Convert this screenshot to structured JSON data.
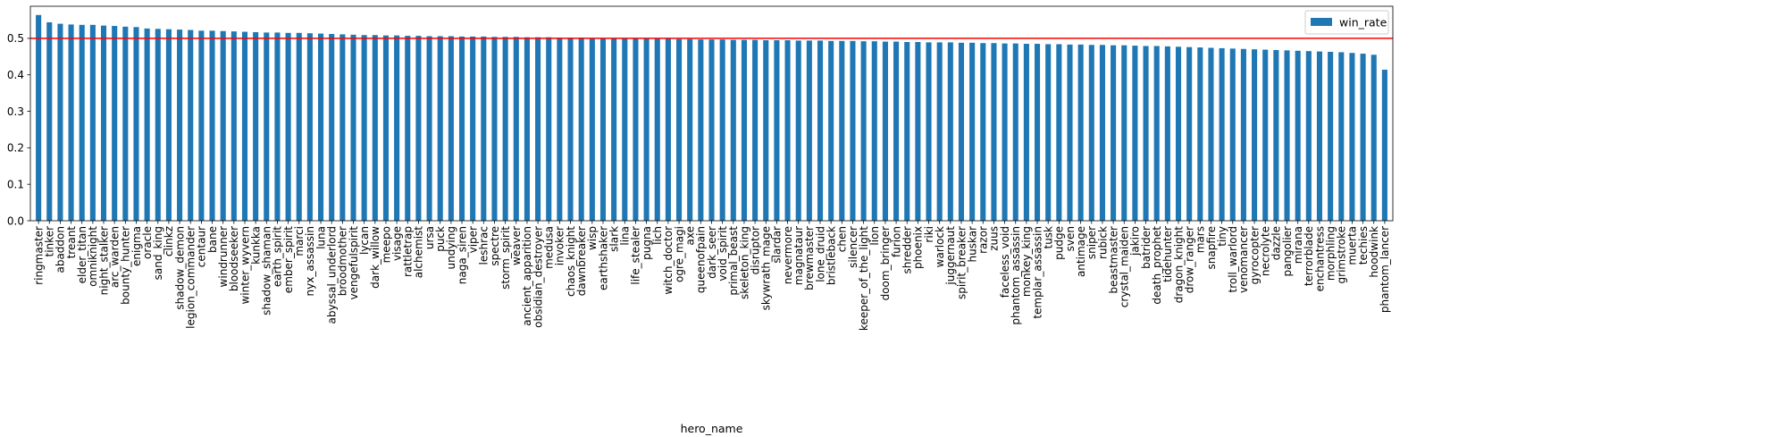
{
  "chart_data": {
    "type": "bar",
    "xlabel": "hero_name",
    "ylabel": "",
    "ylim": [
      0,
      0.588
    ],
    "yticks": [
      "0.0",
      "0.1",
      "0.2",
      "0.3",
      "0.4",
      "0.5"
    ],
    "grid": false,
    "legend_position": "top-right",
    "bar_color": "#1f77b4",
    "reference_line": {
      "y": 0.5,
      "color": "#ff0000"
    },
    "series": [
      {
        "name": "win_rate"
      }
    ],
    "categories": [
      "ringmaster",
      "tinker",
      "abaddon",
      "treant",
      "elder_titan",
      "omniknight",
      "night_stalker",
      "arc_warden",
      "bounty_hunter",
      "enigma",
      "oracle",
      "sand_king",
      "clinkz",
      "shadow_demon",
      "legion_commander",
      "centaur",
      "bane",
      "windrunner",
      "bloodseeker",
      "winter_wyvern",
      "kunkka",
      "shadow_shaman",
      "earth_spirit",
      "ember_spirit",
      "marci",
      "nyx_assassin",
      "luna",
      "abyssal_underlord",
      "broodmother",
      "vengefulspirit",
      "lycan",
      "dark_willow",
      "meepo",
      "visage",
      "rattletrap",
      "alchemist",
      "ursa",
      "puck",
      "undying",
      "naga_siren",
      "viper",
      "leshrac",
      "spectre",
      "storm_spirit",
      "weaver",
      "ancient_apparition",
      "obsidian_destroyer",
      "medusa",
      "invoker",
      "chaos_knight",
      "dawnbreaker",
      "wisp",
      "earthshaker",
      "slark",
      "lina",
      "life_stealer",
      "pugna",
      "lich",
      "witch_doctor",
      "ogre_magi",
      "axe",
      "queenofpain",
      "dark_seer",
      "void_spirit",
      "primal_beast",
      "skeleton_king",
      "disruptor",
      "skywrath_mage",
      "slardar",
      "nevermore",
      "magnataur",
      "brewmaster",
      "lone_druid",
      "bristleback",
      "chen",
      "silencer",
      "keeper_of_the_light",
      "lion",
      "doom_bringer",
      "furion",
      "shredder",
      "phoenix",
      "riki",
      "warlock",
      "juggernaut",
      "spirit_breaker",
      "huskar",
      "razor",
      "zuus",
      "faceless_void",
      "phantom_assassin",
      "monkey_king",
      "templar_assassin",
      "tusk",
      "pudge",
      "sven",
      "antimage",
      "sniper",
      "rubick",
      "beastmaster",
      "crystal_maiden",
      "jakiro",
      "batrider",
      "death_prophet",
      "tidehunter",
      "dragon_knight",
      "drow_ranger",
      "mars",
      "snapfire",
      "tiny",
      "troll_warlord",
      "venomancer",
      "gyrocopter",
      "necrolyte",
      "dazzle",
      "pangolier",
      "mirana",
      "terrorblade",
      "enchantress",
      "morphling",
      "grimstroke",
      "muerta",
      "techies",
      "hoodwink",
      "phantom_lancer"
    ],
    "values": [
      0.564,
      0.544,
      0.54,
      0.538,
      0.537,
      0.537,
      0.535,
      0.534,
      0.532,
      0.531,
      0.527,
      0.526,
      0.525,
      0.524,
      0.523,
      0.521,
      0.521,
      0.52,
      0.519,
      0.518,
      0.517,
      0.516,
      0.516,
      0.515,
      0.515,
      0.514,
      0.513,
      0.512,
      0.511,
      0.51,
      0.509,
      0.509,
      0.508,
      0.508,
      0.507,
      0.507,
      0.506,
      0.506,
      0.506,
      0.505,
      0.505,
      0.505,
      0.504,
      0.504,
      0.504,
      0.503,
      0.503,
      0.503,
      0.502,
      0.502,
      0.502,
      0.501,
      0.501,
      0.501,
      0.5,
      0.5,
      0.5,
      0.499,
      0.499,
      0.498,
      0.498,
      0.497,
      0.497,
      0.497,
      0.496,
      0.496,
      0.496,
      0.495,
      0.495,
      0.495,
      0.494,
      0.494,
      0.494,
      0.493,
      0.493,
      0.493,
      0.492,
      0.492,
      0.491,
      0.491,
      0.49,
      0.49,
      0.489,
      0.489,
      0.489,
      0.488,
      0.488,
      0.487,
      0.487,
      0.486,
      0.486,
      0.485,
      0.485,
      0.484,
      0.484,
      0.483,
      0.483,
      0.482,
      0.482,
      0.481,
      0.481,
      0.48,
      0.479,
      0.479,
      0.478,
      0.477,
      0.476,
      0.475,
      0.474,
      0.473,
      0.472,
      0.471,
      0.47,
      0.469,
      0.468,
      0.467,
      0.466,
      0.465,
      0.464,
      0.463,
      0.462,
      0.46,
      0.458,
      0.455,
      0.414
    ]
  }
}
